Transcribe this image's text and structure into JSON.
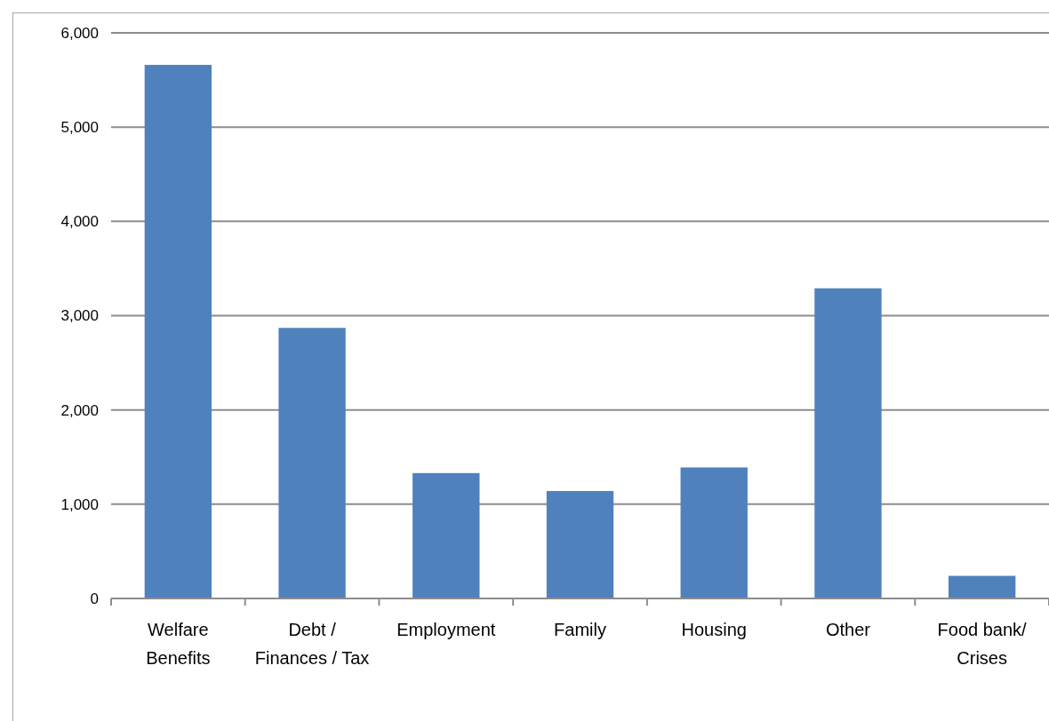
{
  "chart_data": {
    "type": "bar",
    "categories": [
      "Welfare Benefits",
      "Debt / Finances / Tax",
      "Employment",
      "Family",
      "Housing",
      "Other",
      "Food bank/ Crises"
    ],
    "values": [
      5660,
      2870,
      1330,
      1140,
      1390,
      3290,
      240
    ],
    "color": "#4f81bd",
    "ylim": [
      0,
      6000
    ],
    "yticks": [
      {
        "value": 0,
        "label": "0"
      },
      {
        "value": 1000,
        "label": "1,000"
      },
      {
        "value": 2000,
        "label": "2,000"
      },
      {
        "value": 3000,
        "label": "3,000"
      },
      {
        "value": 4000,
        "label": "4,000"
      },
      {
        "value": 5000,
        "label": "5,000"
      },
      {
        "value": 6000,
        "label": "6,000"
      }
    ],
    "grid": "y"
  }
}
